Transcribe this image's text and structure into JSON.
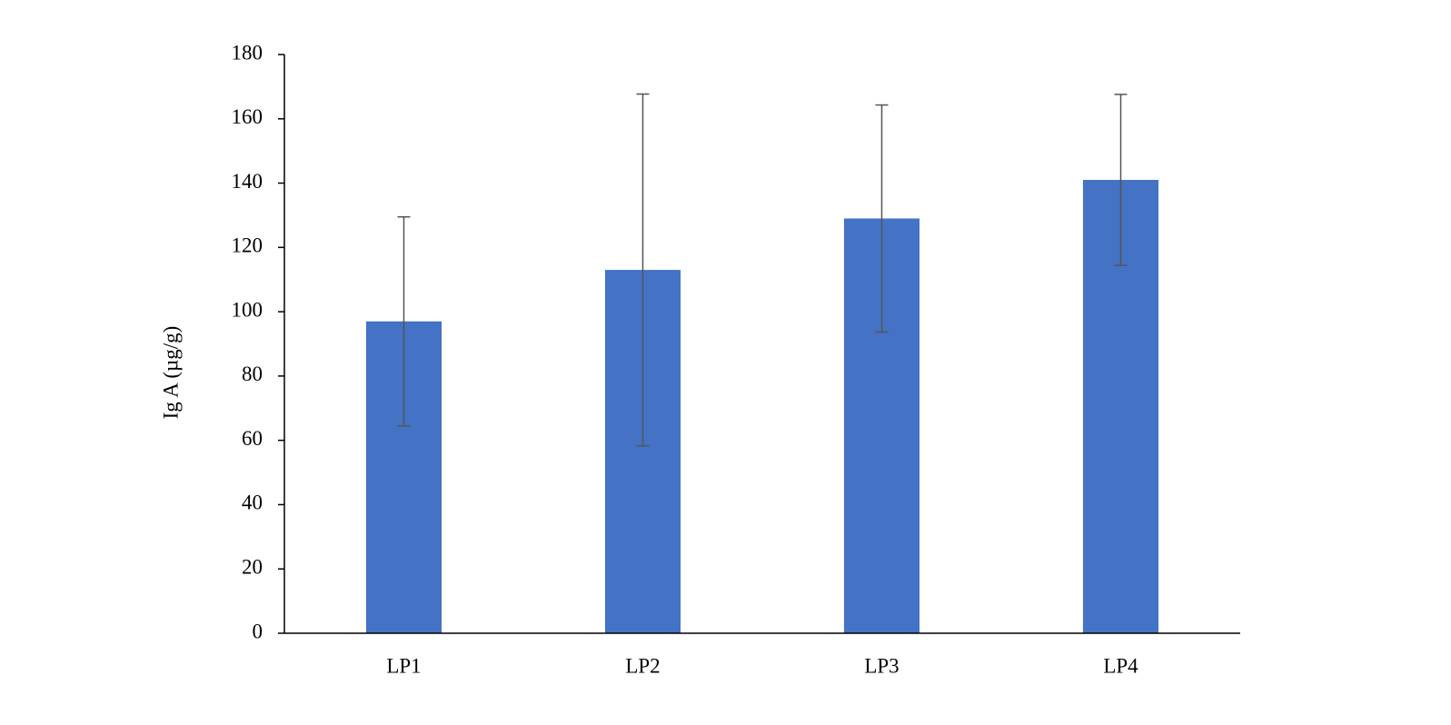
{
  "chart_data": {
    "type": "bar",
    "y_label": "Ig A (µg/g)",
    "categories": [
      "LP1",
      "LP2",
      "LP3",
      "LP4"
    ],
    "values": [
      97,
      113,
      129,
      141
    ],
    "errors": [
      32.5,
      54.7,
      35.3,
      26.6
    ],
    "color": "#4472c4",
    "ylim": [
      0,
      180
    ],
    "yticks": [
      0,
      20,
      40,
      60,
      80,
      100,
      120,
      140,
      160,
      180
    ],
    "grid": false
  }
}
